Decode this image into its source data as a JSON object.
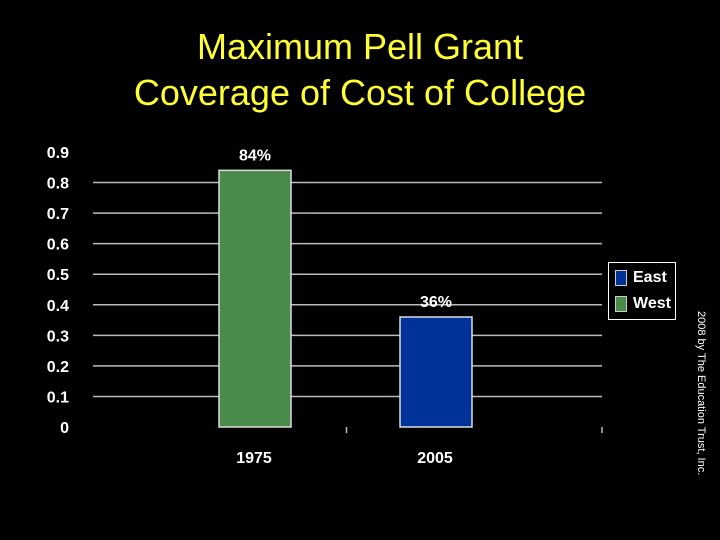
{
  "title_line1": "Maximum Pell Grant",
  "title_line2": "Coverage of Cost of College",
  "credit": "2008 by The Education Trust, Inc.",
  "colors": {
    "title": "#ffff33",
    "east": "#003399",
    "west": "#4a8a4a",
    "background": "#000000"
  },
  "chart_data": {
    "type": "bar",
    "categories": [
      "1975",
      "2005"
    ],
    "series": [
      {
        "name": "East",
        "values": [
          null,
          0.36
        ],
        "color": "#003399"
      },
      {
        "name": "West",
        "values": [
          0.84,
          null
        ],
        "color": "#4a8a4a"
      }
    ],
    "data_labels": [
      "84%",
      "36%"
    ],
    "ylim": [
      0,
      0.9
    ],
    "yticks": [
      "0",
      "0.1",
      "0.2",
      "0.3",
      "0.4",
      "0.5",
      "0.6",
      "0.7",
      "0.8",
      "0.9"
    ],
    "grid": true,
    "legend": "right",
    "xlabel": "",
    "ylabel": ""
  }
}
